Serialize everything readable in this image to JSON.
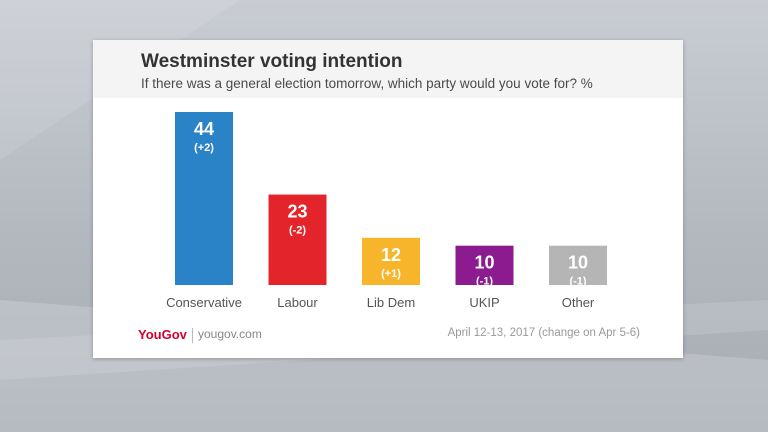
{
  "card": {
    "title": "Westminster voting intention",
    "subtitle": "If there was a general election tomorrow, which party would you vote for? %"
  },
  "chart_data": {
    "type": "bar",
    "title": "Westminster voting intention",
    "subtitle": "If there was a general election tomorrow, which party would you vote for? %",
    "categories": [
      "Conservative",
      "Labour",
      "Lib Dem",
      "UKIP",
      "Other"
    ],
    "values": [
      44,
      23,
      12,
      10,
      10
    ],
    "changes": [
      "(+2)",
      "(-2)",
      "(+1)",
      "(-1)",
      "(-1)"
    ],
    "colors": [
      "#2a82c7",
      "#e3242b",
      "#f7b52c",
      "#8b1b8e",
      "#b5b5b5"
    ],
    "ylim": [
      0,
      44
    ],
    "grid": false,
    "xlabel": "",
    "ylabel": ""
  },
  "footer": {
    "logo": "YouGov",
    "site": "yougov.com",
    "date": "April 12-13, 2017 (change on Apr 5-6)"
  },
  "colors": {
    "brand_red": "#d2002e",
    "header_bg": "#f4f4f4"
  }
}
